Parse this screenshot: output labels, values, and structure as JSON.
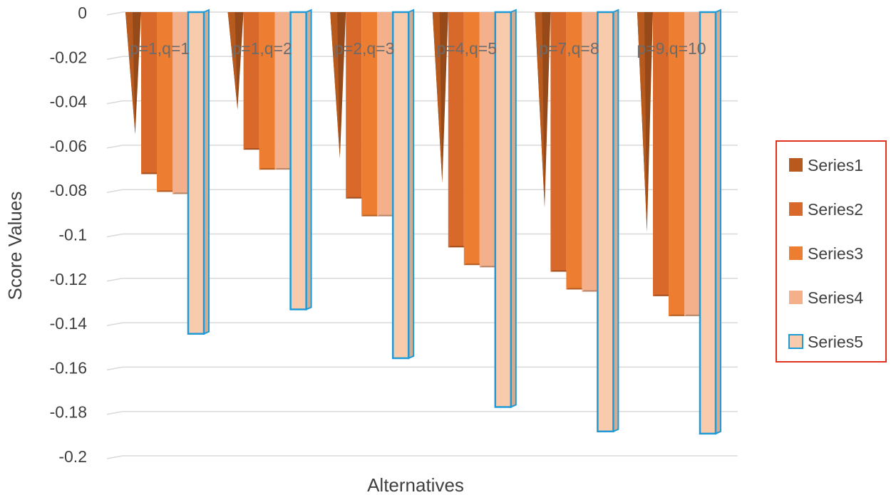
{
  "chart_data": {
    "type": "bar",
    "subtype": "3d-clustered-column",
    "categories": [
      "p=1,q=1",
      "p=1,q=2",
      "p=2,q=3",
      "p=4,q=5",
      "p=7,q=8",
      "p=9,q=10"
    ],
    "series": [
      {
        "name": "Series1",
        "values": [
          -0.055,
          -0.044,
          -0.066,
          -0.077,
          -0.088,
          -0.099
        ],
        "color": "#b85a1e",
        "shape": "cone"
      },
      {
        "name": "Series2",
        "values": [
          -0.073,
          -0.062,
          -0.084,
          -0.106,
          -0.117,
          -0.128
        ],
        "color": "#d9692a"
      },
      {
        "name": "Series3",
        "values": [
          -0.081,
          -0.071,
          -0.092,
          -0.114,
          -0.125,
          -0.137
        ],
        "color": "#ed7d31"
      },
      {
        "name": "Series4",
        "values": [
          -0.082,
          -0.071,
          -0.092,
          -0.115,
          -0.126,
          -0.137
        ],
        "color": "#f4b08a"
      },
      {
        "name": "Series5",
        "values": [
          -0.145,
          -0.134,
          -0.156,
          -0.178,
          -0.189,
          -0.19
        ],
        "color": "#f8cbad",
        "outline": "#1e9ad6"
      }
    ],
    "xlabel": "Alternatives",
    "ylabel": "Score Values",
    "ylim": [
      -0.2,
      0
    ],
    "yticks": [
      "0",
      "-0.02",
      "-0.04",
      "-0.06",
      "-0.08",
      "-0.1",
      "-0.12",
      "-0.14",
      "-0.16",
      "-0.18",
      "-0.2"
    ],
    "grid": true,
    "legend_position": "right",
    "legend_border_color": "#e0301e"
  }
}
